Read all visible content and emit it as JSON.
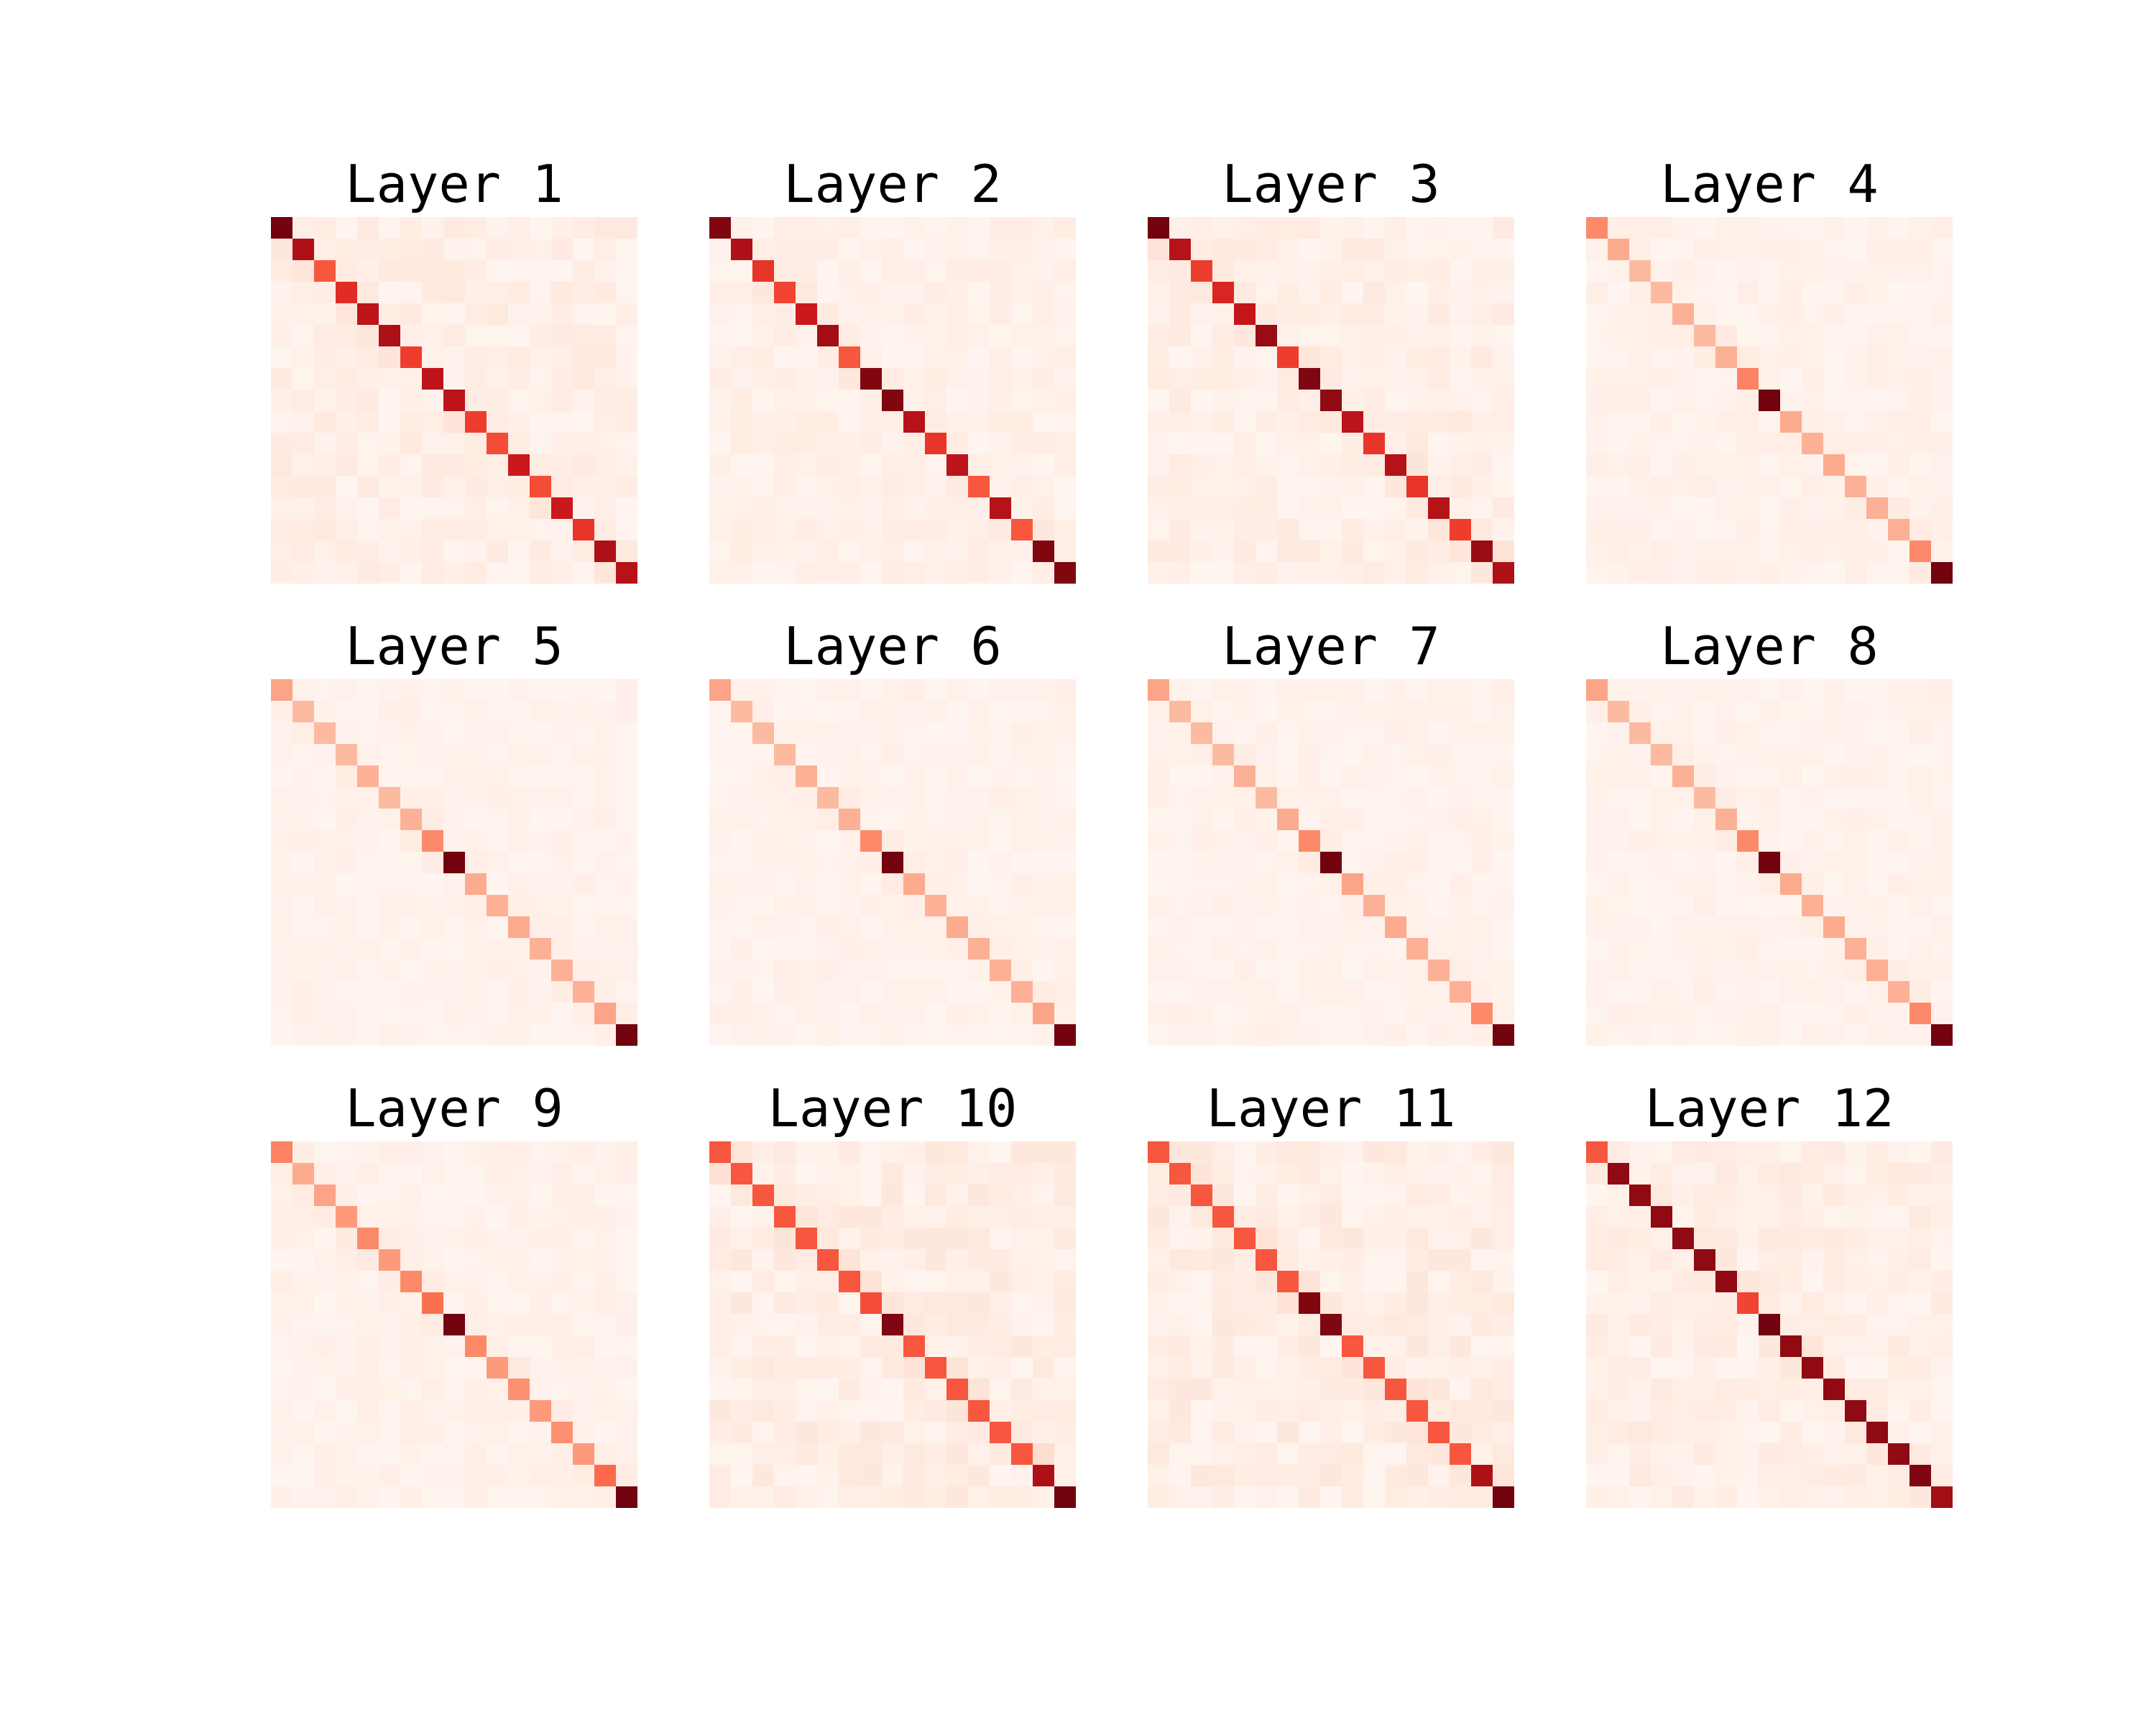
{
  "chart_data": [
    {
      "type": "heatmap",
      "title": "Layer 1",
      "size": 17,
      "diagonal": [
        0.98,
        0.85,
        0.55,
        0.68,
        0.8,
        0.85,
        0.62,
        0.8,
        0.8,
        0.62,
        0.58,
        0.75,
        0.58,
        0.75,
        0.65,
        0.85,
        0.82
      ],
      "off_diagonal_max": 0.1
    },
    {
      "type": "heatmap",
      "title": "Layer 2",
      "size": 17,
      "diagonal": [
        0.95,
        0.85,
        0.65,
        0.6,
        0.75,
        0.88,
        0.55,
        0.95,
        0.95,
        0.82,
        0.65,
        0.8,
        0.55,
        0.82,
        0.55,
        0.95,
        0.95
      ],
      "off_diagonal_max": 0.08
    },
    {
      "type": "heatmap",
      "title": "Layer 3",
      "size": 17,
      "diagonal": [
        0.98,
        0.82,
        0.62,
        0.7,
        0.78,
        0.9,
        0.62,
        0.95,
        0.92,
        0.8,
        0.65,
        0.82,
        0.65,
        0.82,
        0.62,
        0.9,
        0.85
      ],
      "off_diagonal_max": 0.1
    },
    {
      "type": "heatmap",
      "title": "Layer 4",
      "size": 17,
      "diagonal": [
        0.4,
        0.3,
        0.25,
        0.25,
        0.28,
        0.25,
        0.28,
        0.42,
        0.98,
        0.3,
        0.28,
        0.3,
        0.28,
        0.28,
        0.28,
        0.4,
        0.98
      ],
      "off_diagonal_max": 0.06
    },
    {
      "type": "heatmap",
      "title": "Layer 5",
      "size": 17,
      "diagonal": [
        0.32,
        0.25,
        0.25,
        0.25,
        0.28,
        0.25,
        0.28,
        0.4,
        0.98,
        0.3,
        0.28,
        0.3,
        0.28,
        0.28,
        0.28,
        0.32,
        0.98
      ],
      "off_diagonal_max": 0.05
    },
    {
      "type": "heatmap",
      "title": "Layer 6",
      "size": 17,
      "diagonal": [
        0.32,
        0.25,
        0.25,
        0.25,
        0.28,
        0.25,
        0.28,
        0.4,
        0.98,
        0.3,
        0.28,
        0.3,
        0.28,
        0.28,
        0.28,
        0.32,
        0.98
      ],
      "off_diagonal_max": 0.05
    },
    {
      "type": "heatmap",
      "title": "Layer 7",
      "size": 17,
      "diagonal": [
        0.32,
        0.25,
        0.25,
        0.25,
        0.28,
        0.25,
        0.3,
        0.4,
        0.98,
        0.32,
        0.28,
        0.3,
        0.28,
        0.28,
        0.28,
        0.4,
        0.98
      ],
      "off_diagonal_max": 0.05
    },
    {
      "type": "heatmap",
      "title": "Layer 8",
      "size": 17,
      "diagonal": [
        0.32,
        0.25,
        0.25,
        0.25,
        0.28,
        0.25,
        0.28,
        0.4,
        0.98,
        0.3,
        0.28,
        0.3,
        0.28,
        0.28,
        0.28,
        0.4,
        0.98
      ],
      "off_diagonal_max": 0.05
    },
    {
      "type": "heatmap",
      "title": "Layer 9",
      "size": 17,
      "diagonal": [
        0.42,
        0.3,
        0.32,
        0.35,
        0.4,
        0.35,
        0.4,
        0.48,
        0.98,
        0.4,
        0.35,
        0.38,
        0.35,
        0.38,
        0.35,
        0.5,
        0.98
      ],
      "off_diagonal_max": 0.06
    },
    {
      "type": "heatmap",
      "title": "Layer 10",
      "size": 17,
      "diagonal": [
        0.55,
        0.55,
        0.55,
        0.55,
        0.55,
        0.55,
        0.55,
        0.58,
        0.95,
        0.55,
        0.55,
        0.55,
        0.55,
        0.55,
        0.55,
        0.85,
        0.98
      ],
      "off_diagonal_max": 0.12
    },
    {
      "type": "heatmap",
      "title": "Layer 11",
      "size": 17,
      "diagonal": [
        0.55,
        0.55,
        0.55,
        0.55,
        0.55,
        0.55,
        0.55,
        0.95,
        0.95,
        0.55,
        0.55,
        0.55,
        0.55,
        0.55,
        0.55,
        0.85,
        0.98
      ],
      "off_diagonal_max": 0.12
    },
    {
      "type": "heatmap",
      "title": "Layer 12",
      "size": 17,
      "diagonal": [
        0.55,
        0.92,
        0.92,
        0.92,
        0.92,
        0.92,
        0.92,
        0.6,
        0.98,
        0.92,
        0.92,
        0.92,
        0.92,
        0.92,
        0.92,
        0.95,
        0.88
      ],
      "off_diagonal_max": 0.1
    }
  ]
}
